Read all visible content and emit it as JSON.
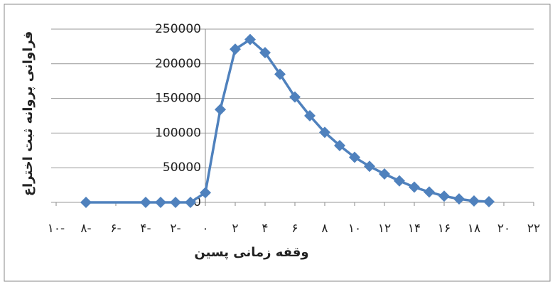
{
  "chart_data": {
    "type": "line",
    "x_label": "وقفه زمانی پسین",
    "y_label": "فراوانی پروانه ثبت اختراع",
    "x": [
      -8,
      -4,
      -3,
      -2,
      -1,
      0,
      1,
      2,
      3,
      4,
      5,
      6,
      7,
      8,
      9,
      10,
      11,
      12,
      13,
      14,
      15,
      16,
      17,
      18,
      19
    ],
    "values": [
      0,
      0,
      0,
      0,
      0,
      14000,
      134000,
      221000,
      235000,
      216000,
      185000,
      152000,
      125000,
      101000,
      82000,
      65000,
      52000,
      41000,
      31000,
      22000,
      15000,
      9000,
      5000,
      2000,
      1000
    ],
    "color": "#4f81bd",
    "xlim": [
      -10,
      22
    ],
    "xticks": [
      {
        "value": -10,
        "label": "۱۰-"
      },
      {
        "value": -8,
        "label": "۸-"
      },
      {
        "value": -6,
        "label": "۶-"
      },
      {
        "value": -4,
        "label": "۴-"
      },
      {
        "value": -2,
        "label": "۲-"
      },
      {
        "value": 0,
        "label": "۰"
      },
      {
        "value": 2,
        "label": "۲"
      },
      {
        "value": 4,
        "label": "۴"
      },
      {
        "value": 6,
        "label": "۶"
      },
      {
        "value": 8,
        "label": "۸"
      },
      {
        "value": 10,
        "label": "۱۰"
      },
      {
        "value": 12,
        "label": "۱۲"
      },
      {
        "value": 14,
        "label": "۱۴"
      },
      {
        "value": 16,
        "label": "۱۶"
      },
      {
        "value": 18,
        "label": "۱۸"
      },
      {
        "value": 20,
        "label": "۲۰"
      },
      {
        "value": 22,
        "label": "۲۲"
      }
    ],
    "ylim": [
      0,
      250000
    ],
    "yticks": [
      0,
      50000,
      100000,
      150000,
      200000,
      250000
    ],
    "grid": true
  }
}
